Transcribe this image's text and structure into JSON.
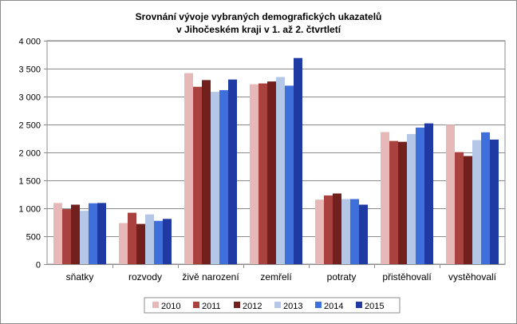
{
  "chart_data": {
    "type": "bar",
    "title": "Srovnání vývoje vybraných  demografických  ukazatelů",
    "subtitle": "v Jihočeském  kraji v 1. až 2. čtvrtletí",
    "xlabel": "",
    "ylabel": "",
    "ylim": [
      0,
      4000
    ],
    "yticks": [
      0,
      500,
      1000,
      1500,
      2000,
      2500,
      3000,
      3500,
      4000
    ],
    "ytick_labels": [
      "0",
      "500",
      "1 000",
      "1 500",
      "2 000",
      "2 500",
      "3 000",
      "3 500",
      "4 000"
    ],
    "grid": true,
    "legend_position": "bottom",
    "categories": [
      "sňatky",
      "rozvody",
      "živě narození",
      "zemřelí",
      "potraty",
      "přistěhovalí",
      "vystěhovalí"
    ],
    "series": [
      {
        "name": "2010",
        "color": "#e6b8b7",
        "values": [
          1095,
          735,
          3420,
          3220,
          1155,
          2365,
          2495
        ]
      },
      {
        "name": "2011",
        "color": "#a9413e",
        "values": [
          985,
          920,
          3175,
          3235,
          1230,
          2205,
          2005
        ]
      },
      {
        "name": "2012",
        "color": "#72201e",
        "values": [
          1065,
          720,
          3295,
          3270,
          1265,
          2190,
          1935
        ]
      },
      {
        "name": "2013",
        "color": "#b4c7e7",
        "values": [
          955,
          890,
          3085,
          3350,
          1165,
          2330,
          2220
        ]
      },
      {
        "name": "2014",
        "color": "#3f6fdb",
        "values": [
          1090,
          775,
          3115,
          3195,
          1165,
          2445,
          2360
        ]
      },
      {
        "name": "2015",
        "color": "#1f3aa3",
        "values": [
          1095,
          810,
          3305,
          3690,
          1065,
          2520,
          2230
        ]
      }
    ]
  }
}
